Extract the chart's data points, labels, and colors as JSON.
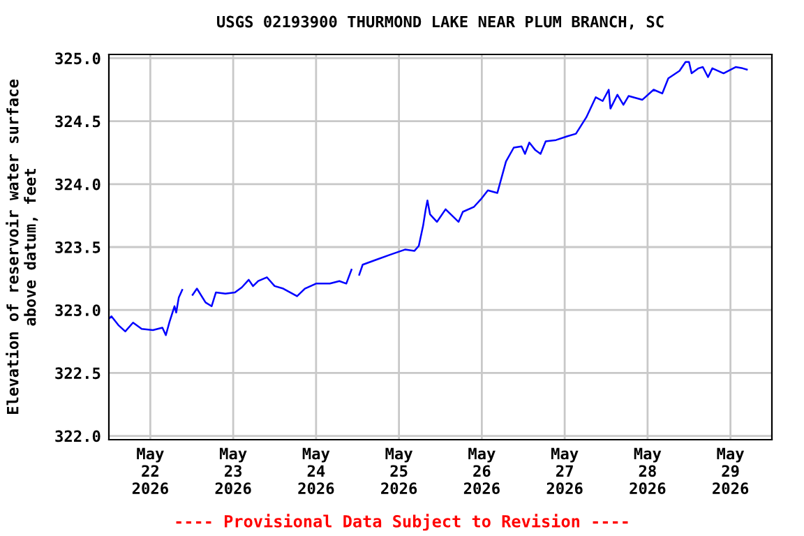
{
  "chart_data": {
    "type": "line",
    "title": "USGS 02193900 THURMOND LAKE NEAR PLUM BRANCH, SC",
    "ylabel": "Elevation of reservoir water surface\nabove datum, feet",
    "annotations": [
      "---- Provisional Data Subject to Revision ----"
    ],
    "x": [
      "2026-05-21T12:00",
      "2026-05-21T12:45",
      "2026-05-21T14:45",
      "2026-05-21T16:45",
      "2026-05-21T19:00",
      "2026-05-21T21:30",
      "2026-05-22T00:45",
      "2026-05-22T03:30",
      "2026-05-22T04:30",
      "2026-05-22T05:30",
      "2026-05-22T07:00",
      "2026-05-22T07:30",
      "2026-05-22T08:15",
      "2026-05-22T09:15",
      "2026-05-22T11:00",
      "2026-05-22T12:15",
      "2026-05-22T13:30",
      "2026-05-22T16:00",
      "2026-05-22T17:45",
      "2026-05-22T19:00",
      "2026-05-22T21:45",
      "2026-05-23T00:30",
      "2026-05-23T02:30",
      "2026-05-23T04:30",
      "2026-05-23T05:45",
      "2026-05-23T07:15",
      "2026-05-23T09:45",
      "2026-05-23T12:00",
      "2026-05-23T14:30",
      "2026-05-23T18:30",
      "2026-05-23T20:45",
      "2026-05-24T00:00",
      "2026-05-24T04:00",
      "2026-05-24T06:45",
      "2026-05-24T08:45",
      "2026-05-24T10:15",
      "2026-05-24T11:30",
      "2026-05-24T12:30",
      "2026-05-24T13:30",
      "2026-05-24T17:30",
      "2026-05-24T21:30",
      "2026-05-25T01:45",
      "2026-05-25T04:30",
      "2026-05-25T05:45",
      "2026-05-25T07:00",
      "2026-05-25T07:45",
      "2026-05-25T08:15",
      "2026-05-25T09:00",
      "2026-05-25T11:00",
      "2026-05-25T13:30",
      "2026-05-25T17:15",
      "2026-05-25T18:30",
      "2026-05-25T21:45",
      "2026-05-25T23:45",
      "2026-05-26T01:45",
      "2026-05-26T04:30",
      "2026-05-26T06:00",
      "2026-05-26T07:00",
      "2026-05-26T09:15",
      "2026-05-26T11:30",
      "2026-05-26T12:30",
      "2026-05-26T13:45",
      "2026-05-26T15:30",
      "2026-05-26T17:00",
      "2026-05-26T18:30",
      "2026-05-26T21:30",
      "2026-05-27T00:45",
      "2026-05-27T03:15",
      "2026-05-27T06:15",
      "2026-05-27T09:00",
      "2026-05-27T11:00",
      "2026-05-27T12:45",
      "2026-05-27T13:15",
      "2026-05-27T15:15",
      "2026-05-27T17:00",
      "2026-05-27T18:30",
      "2026-05-27T22:30",
      "2026-05-28T01:45",
      "2026-05-28T04:15",
      "2026-05-28T06:00",
      "2026-05-28T09:15",
      "2026-05-28T11:00",
      "2026-05-28T12:00",
      "2026-05-28T12:45",
      "2026-05-28T14:45",
      "2026-05-28T16:00",
      "2026-05-28T17:30",
      "2026-05-28T18:45",
      "2026-05-28T22:00",
      "2026-05-29T01:30",
      "2026-05-29T03:30",
      "2026-05-29T04:45"
    ],
    "series": [
      {
        "color": "#0000ff",
        "values": [
          322.93,
          322.95,
          322.88,
          322.83,
          322.9,
          322.85,
          322.84,
          322.86,
          322.8,
          322.9,
          323.03,
          322.98,
          323.1,
          323.16,
          null,
          323.12,
          323.17,
          323.06,
          323.03,
          323.14,
          323.13,
          323.14,
          323.18,
          323.24,
          323.19,
          323.23,
          323.26,
          323.19,
          323.17,
          323.11,
          323.17,
          323.21,
          323.21,
          323.23,
          323.21,
          323.32,
          null,
          323.28,
          323.36,
          323.4,
          323.44,
          323.48,
          323.47,
          323.51,
          323.67,
          323.8,
          323.87,
          323.76,
          323.7,
          323.8,
          323.7,
          323.78,
          323.82,
          323.88,
          323.95,
          323.93,
          324.08,
          324.18,
          324.29,
          324.3,
          324.24,
          324.33,
          324.27,
          324.24,
          324.34,
          324.35,
          324.38,
          324.4,
          324.53,
          324.69,
          324.66,
          324.75,
          324.6,
          324.71,
          324.63,
          324.7,
          324.67,
          324.75,
          324.72,
          324.84,
          324.9,
          324.97,
          324.97,
          324.88,
          324.92,
          324.93,
          324.85,
          324.92,
          324.88,
          324.93,
          324.92,
          324.91
        ]
      }
    ],
    "xlim": [
      "2026-05-21T12:00",
      "2026-05-29T12:00"
    ],
    "xticks": [
      {
        "value": "2026-05-22",
        "label": "May\n22\n2026"
      },
      {
        "value": "2026-05-23",
        "label": "May\n23\n2026"
      },
      {
        "value": "2026-05-24",
        "label": "May\n24\n2026"
      },
      {
        "value": "2026-05-25",
        "label": "May\n25\n2026"
      },
      {
        "value": "2026-05-26",
        "label": "May\n26\n2026"
      },
      {
        "value": "2026-05-27",
        "label": "May\n27\n2026"
      },
      {
        "value": "2026-05-28",
        "label": "May\n28\n2026"
      },
      {
        "value": "2026-05-29",
        "label": "May\n29\n2026"
      }
    ],
    "ylim": [
      321.97,
      325.03
    ],
    "yticks": [
      {
        "value": 322.0,
        "label": "322.0"
      },
      {
        "value": 322.5,
        "label": "322.5"
      },
      {
        "value": 323.0,
        "label": "323.0"
      },
      {
        "value": 323.5,
        "label": "323.5"
      },
      {
        "value": 324.0,
        "label": "324.0"
      },
      {
        "value": 324.5,
        "label": "324.5"
      },
      {
        "value": 325.0,
        "label": "325.0"
      }
    ],
    "grid": true,
    "legend": false,
    "marker": "none",
    "line_style": "solid"
  }
}
